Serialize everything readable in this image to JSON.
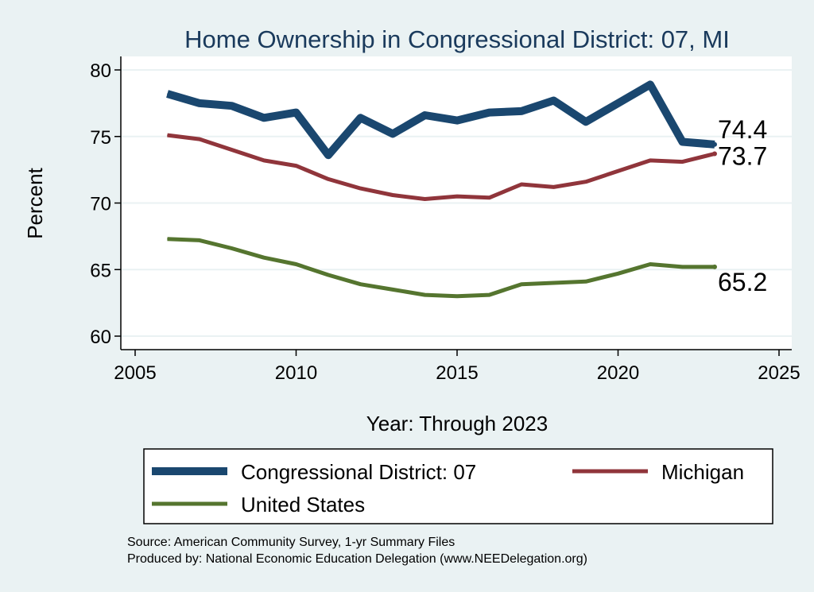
{
  "chart_data": {
    "type": "line",
    "title": "Home Ownership in Congressional District:  07, MI",
    "xlabel": "Year: Through 2023",
    "ylabel": "Percent",
    "xlim": [
      2005,
      2025
    ],
    "ylim": [
      60,
      80
    ],
    "x_ticks": [
      "2005",
      "2010",
      "2015",
      "2020",
      "2025"
    ],
    "y_ticks": [
      "60",
      "65",
      "70",
      "75",
      "80"
    ],
    "grid": true,
    "legend_position": "bottom",
    "x": [
      2006,
      2007,
      2008,
      2009,
      2010,
      2011,
      2012,
      2013,
      2014,
      2015,
      2016,
      2017,
      2018,
      2019,
      2020,
      2021,
      2022,
      2023
    ],
    "series": [
      {
        "name": "Congressional District:  07",
        "color": "#1a476f",
        "values": [
          78.2,
          77.5,
          77.3,
          76.4,
          76.8,
          73.6,
          76.4,
          75.2,
          76.6,
          76.2,
          76.8,
          76.9,
          77.7,
          76.1,
          77.5,
          78.9,
          74.6,
          74.4
        ],
        "end_label": "74.4"
      },
      {
        "name": "Michigan",
        "color": "#90353b",
        "values": [
          75.1,
          74.8,
          74.0,
          73.2,
          72.8,
          71.8,
          71.1,
          70.6,
          70.3,
          70.5,
          70.4,
          71.4,
          71.2,
          71.6,
          72.4,
          73.2,
          73.1,
          73.7
        ],
        "end_label": "73.7"
      },
      {
        "name": "United States",
        "color": "#55752f",
        "values": [
          67.3,
          67.2,
          66.6,
          65.9,
          65.4,
          64.6,
          63.9,
          63.5,
          63.1,
          63.0,
          63.1,
          63.9,
          64.0,
          64.1,
          64.7,
          65.4,
          65.2,
          65.2
        ],
        "end_label": "65.2"
      }
    ]
  },
  "footer": {
    "source": "Source: American Community Survey, 1-yr Summary Files",
    "produced": "Produced by: National Economic Education Delegation (www.NEEDelegation.org)"
  }
}
